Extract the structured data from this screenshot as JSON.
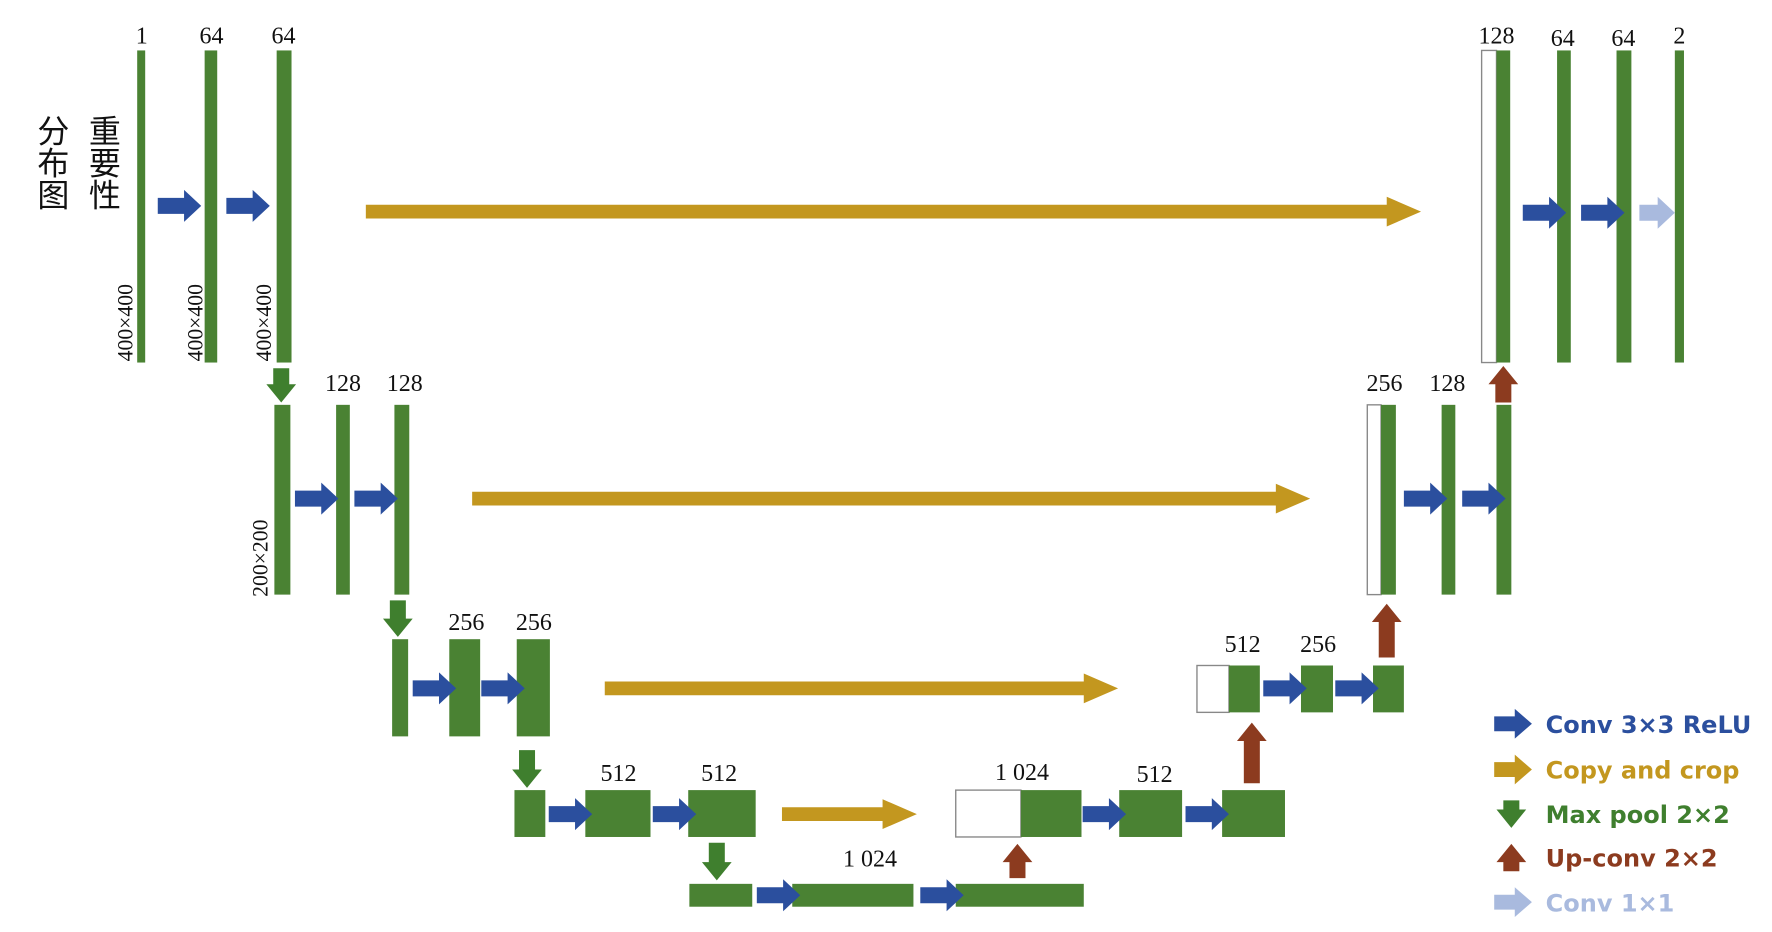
{
  "input_label": [
    "分布图",
    "重要性"
  ],
  "channels": [
    "1",
    "64",
    "64",
    "128",
    "128",
    "256",
    "256",
    "512",
    "512",
    "1 024",
    "1 024",
    "512",
    "512",
    "256",
    "256",
    "128",
    "128",
    "64",
    "64",
    "2"
  ],
  "sizes": [
    "400×400",
    "400×400",
    "400×400",
    "200×200"
  ],
  "legend": [
    "Conv 3×3 ReLU",
    "Copy and crop",
    "Max pool 2×2",
    "Up-conv 2×2",
    "Conv 1×1"
  ]
}
